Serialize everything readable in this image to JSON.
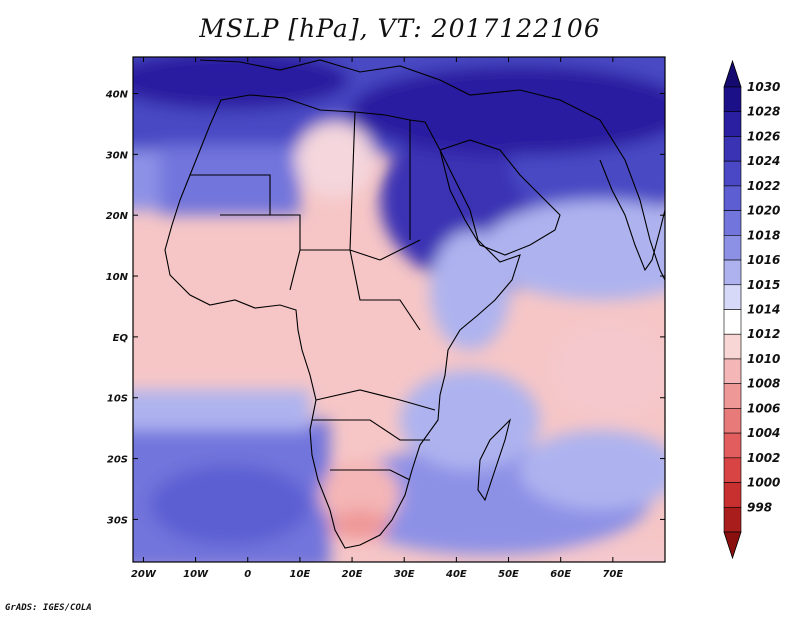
{
  "title": "MSLP [hPa], VT: 2017122106",
  "credit": "GrADS: IGES/COLA",
  "map": {
    "variable": "Mean sea level pressure",
    "units": "hPa",
    "valid_time": "2017122106",
    "lon_range": [
      -22,
      80
    ],
    "lat_range": [
      -37,
      46
    ],
    "lat_ticks": [
      {
        "value": 40,
        "label": "40N"
      },
      {
        "value": 30,
        "label": "30N"
      },
      {
        "value": 20,
        "label": "20N"
      },
      {
        "value": 10,
        "label": "10N"
      },
      {
        "value": 0,
        "label": "EQ"
      },
      {
        "value": -10,
        "label": "10S"
      },
      {
        "value": -20,
        "label": "20S"
      },
      {
        "value": -30,
        "label": "30S"
      }
    ],
    "lon_ticks": [
      {
        "value": -20,
        "label": "20W"
      },
      {
        "value": -10,
        "label": "10W"
      },
      {
        "value": 0,
        "label": "0"
      },
      {
        "value": 10,
        "label": "10E"
      },
      {
        "value": 20,
        "label": "20E"
      },
      {
        "value": 30,
        "label": "30E"
      },
      {
        "value": 40,
        "label": "40E"
      },
      {
        "value": 50,
        "label": "50E"
      },
      {
        "value": 60,
        "label": "60E"
      },
      {
        "value": 70,
        "label": "70E"
      }
    ]
  },
  "colorbar": {
    "levels": [
      {
        "label": "1030",
        "color": "#1c1088"
      },
      {
        "label": "1028",
        "color": "#2a1fa0"
      },
      {
        "label": "1026",
        "color": "#3a33b4"
      },
      {
        "label": "1024",
        "color": "#4a48c4"
      },
      {
        "label": "1022",
        "color": "#5c5ed2"
      },
      {
        "label": "1020",
        "color": "#7275dc"
      },
      {
        "label": "1018",
        "color": "#8d91e6"
      },
      {
        "label": "1016",
        "color": "#aeb3ef"
      },
      {
        "label": "1015",
        "color": "#d6d9f7"
      },
      {
        "label": "1014",
        "color": "#ffffff"
      },
      {
        "label": "1012",
        "color": "#f9d6d6"
      },
      {
        "label": "1010",
        "color": "#f4b6b6"
      },
      {
        "label": "1008",
        "color": "#ef9898"
      },
      {
        "label": "1006",
        "color": "#e97a7a"
      },
      {
        "label": "1004",
        "color": "#e25e5e"
      },
      {
        "label": "1002",
        "color": "#d84444"
      },
      {
        "label": "1000",
        "color": "#c83030"
      },
      {
        "label": "998",
        "color": "#aa1d1d"
      }
    ],
    "top_color": "#150a70",
    "bottom_color": "#8a1010"
  },
  "colors": {
    "background": "#ffffff",
    "ocean_low_lat": "#f6c6c6",
    "ocean_mid_lat": "#8d91e6",
    "coastline": "#000000"
  }
}
